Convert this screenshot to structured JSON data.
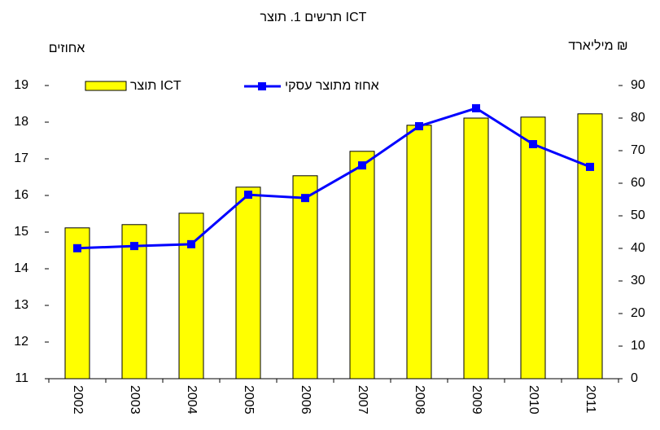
{
  "chart_data": {
    "type": "bar-line",
    "title": "תרשים 1. תוצר ICT",
    "y_label": "אחוזים",
    "y2_label": "מיליארד ₪",
    "categories": [
      "2002",
      "2003",
      "2004",
      "2005",
      "2006",
      "2007",
      "2008",
      "2009",
      "2010",
      "2011"
    ],
    "ylim": [
      11,
      19
    ],
    "yticks": [
      11,
      12,
      13,
      14,
      15,
      16,
      17,
      18,
      19
    ],
    "y2lim": [
      0,
      90
    ],
    "y2ticks": [
      0,
      10,
      20,
      30,
      40,
      50,
      60,
      70,
      80,
      90
    ],
    "series": [
      {
        "name": "תוצר ICT",
        "type": "bar",
        "axis": "y2",
        "color": "#ffff00",
        "values": [
          46.3,
          47.3,
          50.8,
          58.8,
          62.3,
          69.8,
          77.8,
          80,
          80.3,
          81.3
        ]
      },
      {
        "name": "אחוז מתוצר עסקי",
        "type": "line",
        "axis": "y",
        "color": "#0000ff",
        "values": [
          14.56,
          14.62,
          14.67,
          16.02,
          15.93,
          16.82,
          17.89,
          18.38,
          17.4,
          16.78
        ]
      }
    ],
    "grid": false
  }
}
